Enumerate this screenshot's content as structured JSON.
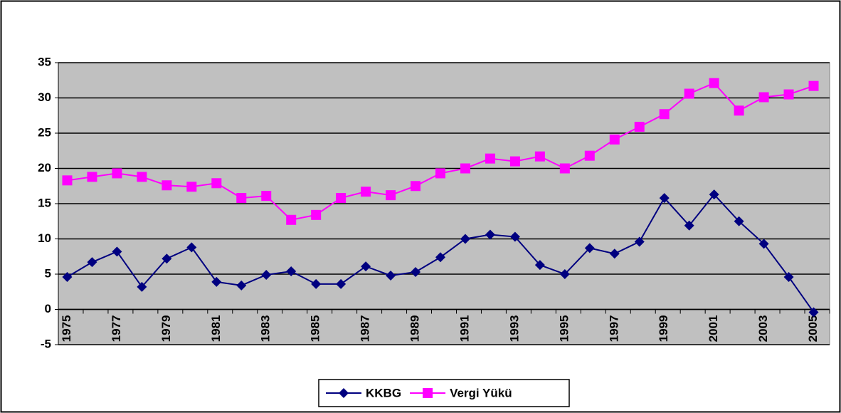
{
  "chart_data": {
    "type": "line",
    "categories": [
      "1975",
      null,
      "1977",
      null,
      "1979",
      null,
      "1981",
      null,
      "1983",
      null,
      "1985",
      null,
      "1987",
      null,
      "1989",
      null,
      "1991",
      null,
      "1993",
      null,
      "1995",
      null,
      "1997",
      null,
      "1999",
      null,
      "2001",
      null,
      "2003",
      null,
      "2005"
    ],
    "series": [
      {
        "name": "KKBG",
        "color": "#000080",
        "marker": "diamond",
        "values": [
          4.6,
          6.7,
          8.2,
          3.2,
          7.2,
          8.8,
          3.9,
          3.4,
          4.9,
          5.4,
          3.6,
          3.6,
          6.1,
          4.8,
          5.3,
          7.4,
          10.0,
          10.6,
          10.3,
          6.3,
          5.0,
          8.7,
          7.9,
          9.6,
          15.8,
          11.9,
          16.3,
          12.5,
          9.3,
          4.6,
          -0.4
        ]
      },
      {
        "name": "Vergi Yükü",
        "color": "#ff00ff",
        "marker": "square",
        "values": [
          18.3,
          18.8,
          19.3,
          18.8,
          17.6,
          17.4,
          17.9,
          15.8,
          16.1,
          12.7,
          13.4,
          15.8,
          16.7,
          16.2,
          17.5,
          19.3,
          20.0,
          21.4,
          21.0,
          21.7,
          20.0,
          21.8,
          24.1,
          25.9,
          27.7,
          30.6,
          32.1,
          28.2,
          30.1,
          30.5,
          31.7
        ]
      }
    ],
    "ylim": [
      -5,
      35
    ],
    "yticks": [
      -5,
      0,
      5,
      10,
      15,
      20,
      25,
      30,
      35
    ],
    "grid": true,
    "legend": "bottom"
  }
}
